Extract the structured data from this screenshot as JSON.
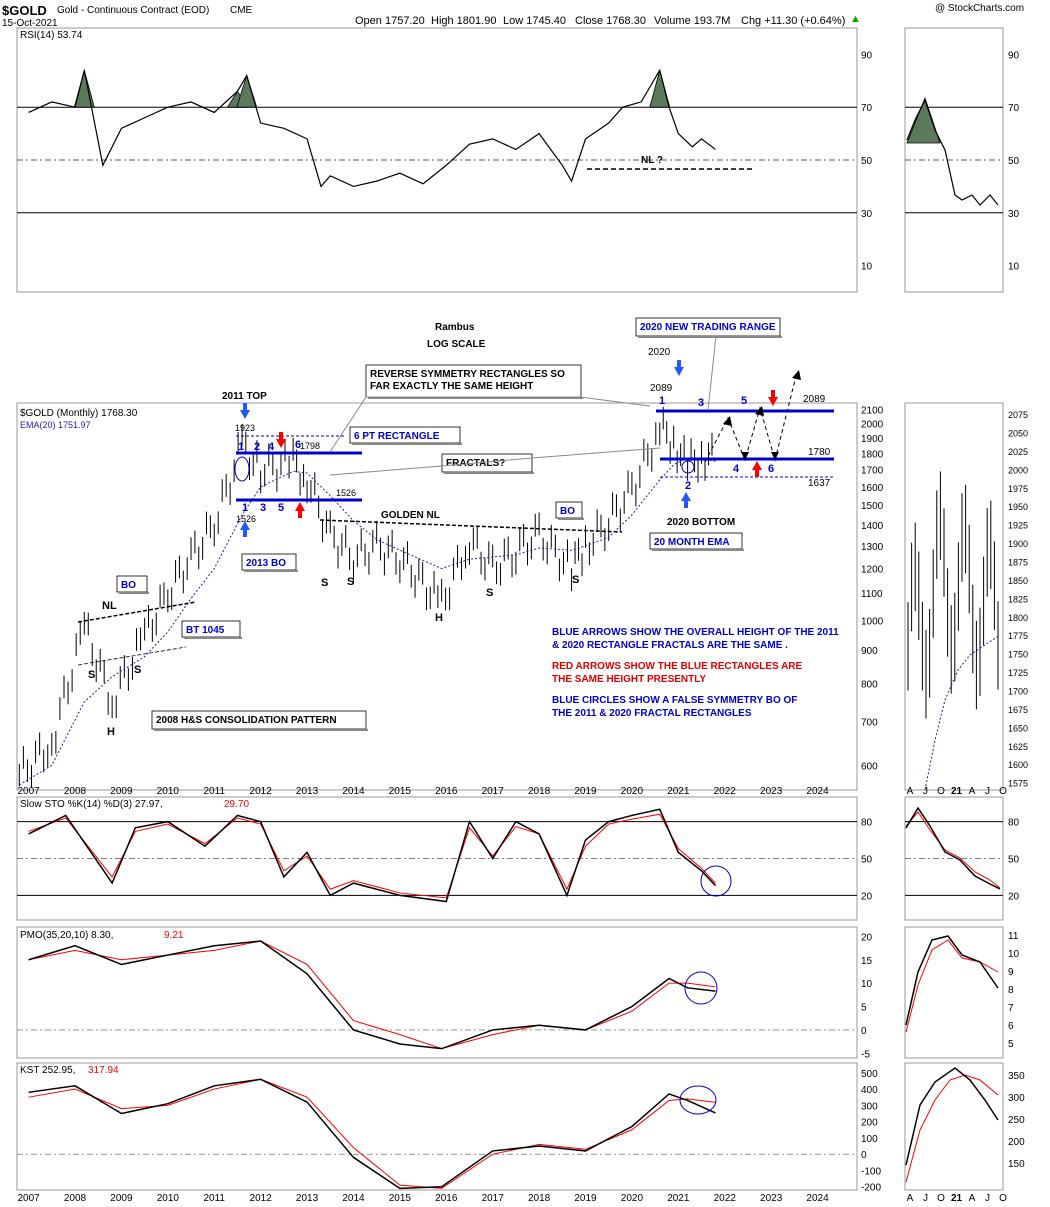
{
  "header": {
    "symbol": "$GOLD",
    "name": "Gold - Continuous Contract (EOD)",
    "exchange": "CME",
    "date": "15-Oct-2021",
    "open": "Open 1757.20",
    "high": "High 1801.90",
    "low": "Low 1745.40",
    "close": "Close 1768.30",
    "volume": "Volume 193.7M",
    "chg": "Chg +11.30 (+0.64%)",
    "chg_arrow": "▲",
    "watermark": "@ StockCharts.com"
  },
  "colors": {
    "price": "#000000",
    "ema": "#1e1eb4",
    "signal": "#ff0000",
    "blue_annotation": "#0000cc",
    "red_annotation": "#e00000",
    "rsi_fill": "#5a7a5a",
    "grid": "#000000",
    "arrow_blue": "#1e5aff",
    "arrow_red": "#ff0000"
  },
  "panels": {
    "rsi": {
      "legend": "RSI(14) 53.74",
      "ticks": [
        "90",
        "70",
        "50",
        "30",
        "10"
      ]
    },
    "price": {
      "legend_symbol": "$GOLD (Monthly) 1768.30",
      "legend_ema": "EMA(20) 1751.97",
      "ticks": [
        "2100",
        "2000",
        "1900",
        "1800",
        "1700",
        "1600",
        "1500",
        "1400",
        "1300",
        "1200",
        "1100",
        "1000",
        "900",
        "800",
        "700",
        "600"
      ],
      "detail_ticks": [
        "2075",
        "2050",
        "2025",
        "2000",
        "1975",
        "1950",
        "1925",
        "1900",
        "1875",
        "1850",
        "1825",
        "1800",
        "1775",
        "1750",
        "1725",
        "1700",
        "1675",
        "1650",
        "1625",
        "1600",
        "1575"
      ]
    },
    "sto": {
      "legend": "Slow STO %K(14) %D(3) 27.97,",
      "legend_d": "29.70",
      "ticks": [
        "80",
        "50",
        "20"
      ]
    },
    "pmo": {
      "legend": "PMO(35,20,10) 8.30,",
      "legend_signal": "9.21",
      "ticks": [
        "20",
        "15",
        "10",
        "5",
        "0",
        "-5"
      ],
      "detail_ticks": [
        "11",
        "10",
        "9",
        "8",
        "7",
        "6",
        "5"
      ]
    },
    "kst": {
      "legend": "KST 252.95,",
      "legend_signal": "317.94",
      "ticks": [
        "500",
        "400",
        "300",
        "200",
        "100",
        "0",
        "-100",
        "-200"
      ],
      "detail_ticks": [
        "350",
        "300",
        "250",
        "200",
        "150"
      ]
    }
  },
  "x_axis": {
    "years": [
      "2007",
      "2008",
      "2009",
      "2010",
      "2011",
      "2012",
      "2013",
      "2014",
      "2015",
      "2016",
      "2017",
      "2018",
      "2019",
      "2020",
      "2021",
      "2022",
      "2023",
      "2024"
    ],
    "detail_months": [
      "A",
      "J",
      "O",
      "21",
      "A",
      "J",
      "O"
    ]
  },
  "annotations": {
    "rambus": "Rambus",
    "log_scale": "LOG SCALE",
    "top_2011": "2011 TOP",
    "v1923": "1923",
    "v1798": "1798",
    "v1526a": "1526",
    "v1526b": "1526",
    "rect6": "6 PT  RECTANGLE",
    "reverse_sym": "REVERSE SYMMETRY RECTANGLES SO FAR EXACTLY THE SAME HEIGHT",
    "reverse_sym_l1": "REVERSE SYMMETRY RECTANGLES SO",
    "reverse_sym_l2": "FAR EXACTLY THE SAME HEIGHT",
    "fractals": "FRACTALS?",
    "golden_nl": "GOLDEN NL",
    "bo_2013": "2013 BO",
    "bo": "BO",
    "bo2": "BO",
    "nl": "NL",
    "bt1045": "BT 1045",
    "hs2008": "2008 H&S CONSOLIDATION PATTERN",
    "new_range": "2020 NEW TRADING RANGE",
    "y2020": "2020",
    "v2089": "2089",
    "v2089b": "2089",
    "v1780": "1780",
    "v1637": "1637",
    "bottom2020": "2020 BOTTOM",
    "ema20": "20 MONTH EMA",
    "nl_q": "NL ?",
    "pts_2011": [
      "1",
      "2",
      "4",
      "6",
      "1",
      "3",
      "5"
    ],
    "pts_2020": [
      "1",
      "3",
      "5",
      "2",
      "4",
      "6"
    ],
    "S": "S",
    "H": "H",
    "note_blue1_l1": "BLUE ARROWS SHOW THE OVERALL HEIGHT OF THE 2011",
    "note_blue1_l2": "& 2020 RECTANGLE FRACTALS ARE THE SAME .",
    "note_red_l1": "RED ARROWS SHOW THE BLUE RECTANGLES ARE",
    "note_red_l2": "THE SAME HEIGHT PRESENTLY",
    "note_blue2_l1": "BLUE CIRCLES SHOW A FALSE SYMMETRY BO OF",
    "note_blue2_l2": "THE  2011 & 2020 FRACTAL RECTANGLES"
  },
  "chart_data": [
    {
      "type": "line",
      "title": "RSI(14)",
      "x": [
        2007.0,
        2007.5,
        2008.0,
        2008.2,
        2008.6,
        2009.0,
        2009.5,
        2010.0,
        2010.5,
        2011.0,
        2011.5,
        2011.7,
        2012.0,
        2012.5,
        2013.0,
        2013.3,
        2013.5,
        2014.0,
        2014.5,
        2015.0,
        2015.5,
        2016.0,
        2016.5,
        2017.0,
        2017.5,
        2018.0,
        2018.5,
        2018.7,
        2019.0,
        2019.5,
        2019.8,
        2020.2,
        2020.6,
        2020.8,
        2021.0,
        2021.3,
        2021.5,
        2021.8
      ],
      "series": [
        {
          "name": "RSI(14)",
          "values": [
            68,
            72,
            70,
            84,
            48,
            62,
            66,
            70,
            72,
            68,
            76,
            82,
            64,
            62,
            58,
            40,
            44,
            40,
            42,
            45,
            41,
            48,
            56,
            58,
            54,
            60,
            48,
            42,
            58,
            64,
            70,
            72,
            84,
            70,
            60,
            55,
            58,
            54
          ]
        }
      ],
      "ylim": [
        0,
        100
      ]
    },
    {
      "type": "line",
      "title": "$GOLD (Monthly)",
      "x": [
        2006.8,
        2007.5,
        2008.2,
        2008.8,
        2009.5,
        2010.0,
        2010.5,
        2011.0,
        2011.6,
        2012.0,
        2012.7,
        2013.0,
        2013.5,
        2014.0,
        2014.5,
        2015.0,
        2015.9,
        2016.5,
        2017.0,
        2017.5,
        2018.0,
        2018.7,
        2019.0,
        2019.5,
        2020.0,
        2020.6,
        2020.9,
        2021.2,
        2021.5,
        2021.8
      ],
      "series": [
        {
          "name": "$GOLD",
          "values": [
            580,
            650,
            980,
            750,
            950,
            1100,
            1250,
            1400,
            1850,
            1700,
            1750,
            1650,
            1350,
            1250,
            1300,
            1250,
            1060,
            1330,
            1200,
            1280,
            1350,
            1200,
            1300,
            1420,
            1580,
            1970,
            1880,
            1720,
            1800,
            1768
          ]
        },
        {
          "name": "EMA(20)",
          "values": [
            560,
            600,
            750,
            820,
            880,
            960,
            1080,
            1200,
            1450,
            1600,
            1690,
            1680,
            1550,
            1420,
            1330,
            1280,
            1200,
            1240,
            1250,
            1260,
            1290,
            1280,
            1300,
            1340,
            1450,
            1640,
            1730,
            1770,
            1765,
            1752
          ]
        }
      ],
      "ylim": [
        550,
        2150
      ]
    },
    {
      "type": "line",
      "title": "Slow STO %K(14) %D(3)",
      "x": [
        2007.0,
        2007.8,
        2008.8,
        2009.3,
        2010.0,
        2010.8,
        2011.5,
        2012.0,
        2012.5,
        2013.0,
        2013.5,
        2014.0,
        2015.0,
        2016.0,
        2016.5,
        2017.0,
        2017.5,
        2018.0,
        2018.6,
        2019.0,
        2019.5,
        2020.0,
        2020.6,
        2021.0,
        2021.5,
        2021.8
      ],
      "series": [
        {
          "name": "%K",
          "values": [
            70,
            85,
            30,
            75,
            80,
            60,
            85,
            80,
            35,
            55,
            20,
            30,
            20,
            15,
            80,
            50,
            80,
            70,
            20,
            65,
            80,
            85,
            90,
            55,
            40,
            28
          ],
          "_": ""
        },
        {
          "name": "%D",
          "values": [
            72,
            83,
            35,
            72,
            78,
            62,
            83,
            78,
            40,
            52,
            25,
            32,
            22,
            18,
            75,
            52,
            76,
            70,
            25,
            60,
            78,
            82,
            86,
            58,
            42,
            30
          ]
        }
      ],
      "ylim": [
        0,
        100
      ]
    },
    {
      "type": "line",
      "title": "PMO(35,20,10)",
      "x": [
        2007.0,
        2008.0,
        2009.0,
        2010.0,
        2011.0,
        2012.0,
        2013.0,
        2014.0,
        2015.0,
        2015.9,
        2017.0,
        2018.0,
        2019.0,
        2020.0,
        2020.8,
        2021.2,
        2021.8
      ],
      "series": [
        {
          "name": "PMO",
          "values": [
            15,
            18,
            14,
            16,
            18,
            19,
            12,
            0,
            -3,
            -4,
            0,
            1,
            0,
            5,
            11,
            9,
            8.3
          ]
        },
        {
          "name": "Signal",
          "values": [
            15,
            17,
            15,
            16,
            17,
            19,
            14,
            2,
            -1,
            -4,
            -1,
            1,
            0,
            4,
            10,
            10,
            9.2
          ]
        }
      ],
      "ylim": [
        -6,
        22
      ]
    },
    {
      "type": "line",
      "title": "KST",
      "x": [
        2007.0,
        2008.0,
        2009.0,
        2010.0,
        2011.0,
        2012.0,
        2013.0,
        2014.0,
        2015.0,
        2015.9,
        2017.0,
        2018.0,
        2019.0,
        2020.0,
        2020.8,
        2021.2,
        2021.8
      ],
      "series": [
        {
          "name": "KST",
          "values": [
            380,
            420,
            250,
            310,
            420,
            460,
            320,
            -20,
            -210,
            -200,
            20,
            50,
            20,
            170,
            370,
            330,
            253
          ]
        },
        {
          "name": "Signal",
          "values": [
            350,
            400,
            280,
            300,
            400,
            460,
            350,
            40,
            -190,
            -210,
            0,
            60,
            30,
            150,
            330,
            340,
            318
          ]
        }
      ],
      "ylim": [
        -220,
        560
      ]
    }
  ]
}
